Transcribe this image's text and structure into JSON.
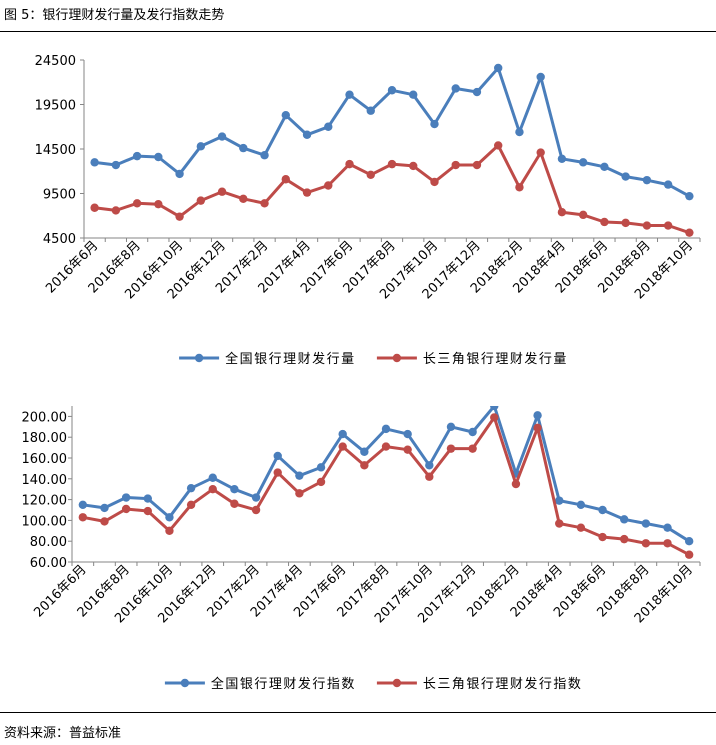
{
  "figure_title": "图 5：银行理财发行量及发行指数走势",
  "source": "资料来源：普益标准",
  "colors": {
    "national": "#4a7ebb",
    "yrd": "#be4b48"
  },
  "chart_data": [
    {
      "type": "line",
      "title": "",
      "xlabel": "",
      "ylabel": "",
      "ylim": [
        4500,
        24500
      ],
      "yticks": [
        "4500",
        "9500",
        "14500",
        "19500",
        "24500"
      ],
      "ytick_values": [
        4500,
        9500,
        14500,
        19500,
        24500
      ],
      "categories": [
        "2016年6月",
        "2016年7月",
        "2016年8月",
        "2016年9月",
        "2016年10月",
        "2016年11月",
        "2016年12月",
        "2017年1月",
        "2017年2月",
        "2017年3月",
        "2017年4月",
        "2017年5月",
        "2017年6月",
        "2017年7月",
        "2017年8月",
        "2017年9月",
        "2017年10月",
        "2017年11月",
        "2017年12月",
        "2018年1月",
        "2018年2月",
        "2018年3月",
        "2018年4月",
        "2018年5月",
        "2018年6月",
        "2018年7月",
        "2018年8月",
        "2018年9月",
        "2018年10月"
      ],
      "xtick_labels": [
        "2016年6月",
        "2016年8月",
        "2016年10月",
        "2016年12月",
        "2017年2月",
        "2017年4月",
        "2017年6月",
        "2017年8月",
        "2017年10月",
        "2017年12月",
        "2018年2月",
        "2018年4月",
        "2018年6月",
        "2018年8月",
        "2018年10月"
      ],
      "legend_position": "bottom",
      "grid": false,
      "series": [
        {
          "name": "全国银行理财发行量",
          "color": "#4a7ebb",
          "values": [
            13000,
            12700,
            13700,
            13600,
            11700,
            14800,
            15900,
            14600,
            13800,
            18300,
            16100,
            17000,
            20600,
            18800,
            21100,
            20600,
            17300,
            21300,
            20900,
            23600,
            16400,
            22600,
            13400,
            13000,
            12500,
            11400,
            11000,
            10500,
            9200
          ]
        },
        {
          "name": "长三角银行理财发行量",
          "color": "#be4b48",
          "values": [
            7900,
            7600,
            8400,
            8300,
            6900,
            8700,
            9700,
            8900,
            8400,
            11100,
            9600,
            10400,
            12800,
            11600,
            12800,
            12600,
            10800,
            12700,
            12700,
            14900,
            10200,
            14100,
            7400,
            7100,
            6300,
            6200,
            5900,
            5900,
            5100
          ]
        }
      ]
    },
    {
      "type": "line",
      "title": "",
      "xlabel": "",
      "ylabel": "",
      "ylim": [
        60,
        210
      ],
      "yticks": [
        "60.00",
        "80.00",
        "100.00",
        "120.00",
        "140.00",
        "160.00",
        "180.00",
        "200.00"
      ],
      "ytick_values": [
        60,
        80,
        100,
        120,
        140,
        160,
        180,
        200
      ],
      "categories": [
        "2016年6月",
        "2016年7月",
        "2016年8月",
        "2016年9月",
        "2016年10月",
        "2016年11月",
        "2016年12月",
        "2017年1月",
        "2017年2月",
        "2017年3月",
        "2017年4月",
        "2017年5月",
        "2017年6月",
        "2017年7月",
        "2017年8月",
        "2017年9月",
        "2017年10月",
        "2017年11月",
        "2017年12月",
        "2018年1月",
        "2018年2月",
        "2018年3月",
        "2018年4月",
        "2018年5月",
        "2018年6月",
        "2018年7月",
        "2018年8月",
        "2018年9月",
        "2018年10月"
      ],
      "xtick_labels": [
        "2016年6月",
        "2016年8月",
        "2016年10月",
        "2016年12月",
        "2017年2月",
        "2017年4月",
        "2017年6月",
        "2017年8月",
        "2017年10月",
        "2017年12月",
        "2018年2月",
        "2018年4月",
        "2018年6月",
        "2018年8月",
        "2018年10月"
      ],
      "legend_position": "bottom",
      "grid": false,
      "series": [
        {
          "name": "全国银行理财发行指数",
          "color": "#4a7ebb",
          "values": [
            115,
            112,
            122,
            121,
            103,
            131,
            141,
            130,
            122,
            162,
            143,
            151,
            183,
            166,
            188,
            183,
            153,
            190,
            185,
            210,
            145,
            201,
            119,
            115,
            110,
            101,
            97,
            93,
            80
          ]
        },
        {
          "name": "长三角银行理财发行指数",
          "color": "#be4b48",
          "values": [
            103,
            99,
            111,
            109,
            90,
            115,
            130,
            116,
            110,
            146,
            126,
            137,
            171,
            153,
            171,
            168,
            142,
            169,
            169,
            199,
            135,
            189,
            97,
            93,
            84,
            82,
            78,
            78,
            67
          ]
        }
      ]
    }
  ]
}
